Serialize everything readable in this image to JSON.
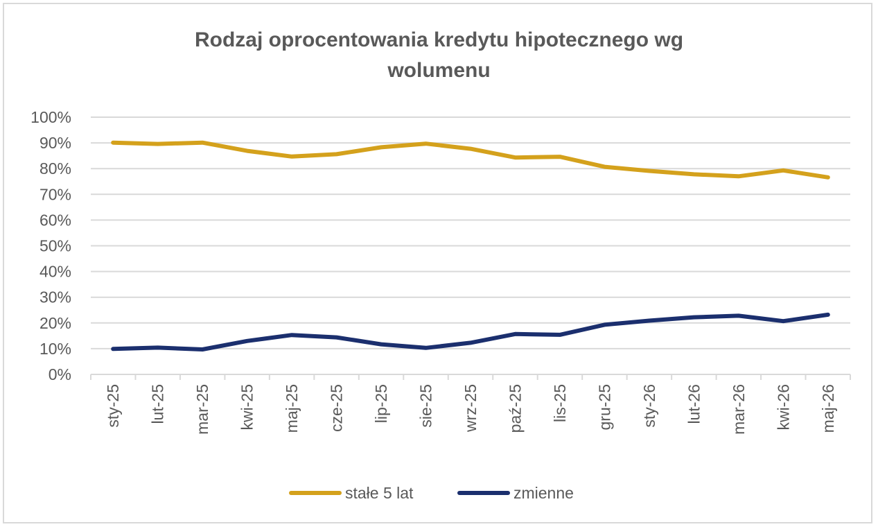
{
  "chart_data": {
    "type": "line",
    "title_lines": [
      "Rodzaj oprocentowania kredytu hipotecznego wg",
      "wolumenu"
    ],
    "categories": [
      "sty-25",
      "lut-25",
      "mar-25",
      "kwi-25",
      "maj-25",
      "cze-25",
      "lip-25",
      "sie-25",
      "wrz-25",
      "paź-25",
      "lis-25",
      "gru-25",
      "sty-26",
      "lut-26",
      "mar-26",
      "kwi-26",
      "maj-26"
    ],
    "ylim": [
      0,
      100
    ],
    "yticks": [
      0,
      10,
      20,
      30,
      40,
      50,
      60,
      70,
      80,
      90,
      100
    ],
    "ytick_labels": [
      "0%",
      "10%",
      "20%",
      "30%",
      "40%",
      "50%",
      "60%",
      "70%",
      "80%",
      "90%",
      "100%"
    ],
    "grid": true,
    "legend_position": "bottom",
    "series": [
      {
        "name": "stałe 5 lat",
        "color": "#d4a11c",
        "values": [
          90.1,
          89.6,
          90.1,
          86.9,
          84.7,
          85.6,
          88.3,
          89.7,
          87.7,
          84.3,
          84.6,
          80.7,
          79.1,
          77.8,
          77.0,
          79.3,
          76.6
        ]
      },
      {
        "name": "zmienne",
        "color": "#1b2f6e",
        "values": [
          9.9,
          10.4,
          9.7,
          13.0,
          15.3,
          14.4,
          11.7,
          10.3,
          12.3,
          15.7,
          15.4,
          19.3,
          20.9,
          22.2,
          22.8,
          20.7,
          23.2
        ]
      }
    ]
  }
}
